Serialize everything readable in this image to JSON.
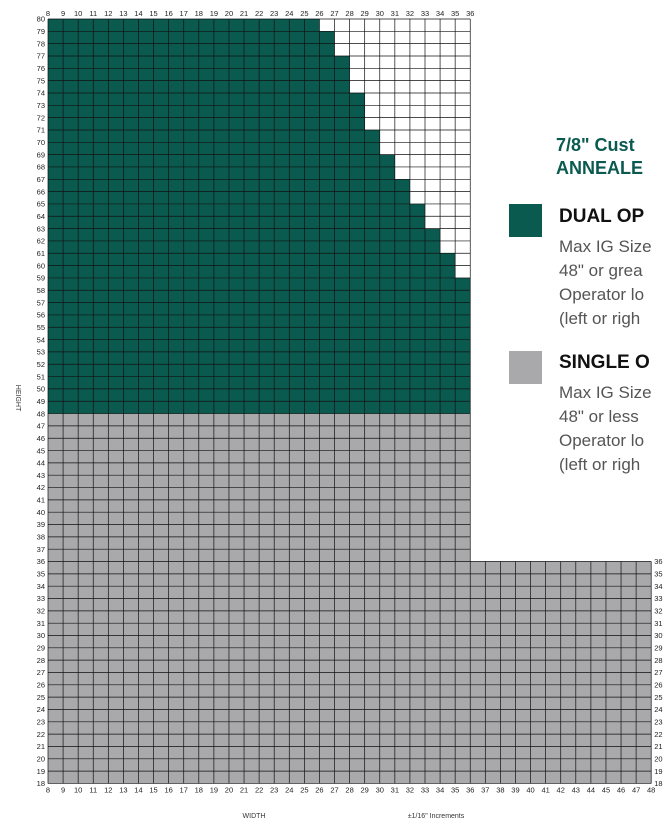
{
  "legend": {
    "heading_line1": "7/8\" Cust",
    "heading_line2": "ANNEALE",
    "dual": {
      "title": "DUAL OP",
      "color": "#0b5a50",
      "lines": [
        "Max IG Size",
        "48\" or grea",
        "Operator lo",
        "(left or righ"
      ]
    },
    "single": {
      "title": "SINGLE O",
      "color": "#a9a9ab",
      "lines": [
        "Max IG Size",
        "48\" or less",
        "Operator lo",
        "(left or righ"
      ]
    }
  },
  "chart_data": {
    "type": "heatmap",
    "xlabel": "WIDTH",
    "ylabel": "HEIGHT",
    "increments_note": "±1/16\" Increments",
    "x_range": [
      8,
      48
    ],
    "y_range": [
      18,
      80
    ],
    "x_ticks_top": [
      8,
      9,
      10,
      11,
      12,
      13,
      14,
      15,
      16,
      17,
      18,
      19,
      20,
      21,
      22,
      23,
      24,
      25,
      26,
      27,
      28,
      29,
      30,
      31,
      32,
      33,
      34,
      35,
      36
    ],
    "x_ticks_bottom": [
      8,
      9,
      10,
      11,
      12,
      13,
      14,
      15,
      16,
      17,
      18,
      19,
      20,
      21,
      22,
      23,
      24,
      25,
      26,
      27,
      28,
      29,
      30,
      31,
      32,
      33,
      34,
      35,
      36,
      37,
      38,
      39,
      40,
      41,
      42,
      43,
      44,
      45,
      46,
      47,
      48
    ],
    "y_ticks_right": [
      18,
      19,
      20,
      21,
      22,
      23,
      24,
      25,
      26,
      27,
      28,
      29,
      30,
      31,
      32,
      33,
      34,
      35,
      36
    ],
    "grid": true,
    "dual_operator": {
      "height_range": [
        48,
        80
      ],
      "max_width_by_height": [
        {
          "height_min": 48,
          "height_max": 59,
          "max_width": 36
        },
        {
          "height_min": 59,
          "height_max": 61,
          "max_width": 35
        },
        {
          "height_min": 61,
          "height_max": 63,
          "max_width": 34
        },
        {
          "height_min": 63,
          "height_max": 65,
          "max_width": 33
        },
        {
          "height_min": 65,
          "height_max": 67,
          "max_width": 32
        },
        {
          "height_min": 67,
          "height_max": 69,
          "max_width": 31
        },
        {
          "height_min": 69,
          "height_max": 71,
          "max_width": 30
        },
        {
          "height_min": 71,
          "height_max": 74,
          "max_width": 29
        },
        {
          "height_min": 74,
          "height_max": 77,
          "max_width": 28
        },
        {
          "height_min": 77,
          "height_max": 79,
          "max_width": 27
        },
        {
          "height_min": 79,
          "height_max": 80,
          "max_width": 26
        }
      ]
    },
    "single_operator": {
      "regions": [
        {
          "width_range": [
            8,
            36
          ],
          "height_range": [
            18,
            48
          ]
        },
        {
          "width_range": [
            36,
            48
          ],
          "height_range": [
            18,
            36
          ]
        }
      ]
    }
  }
}
